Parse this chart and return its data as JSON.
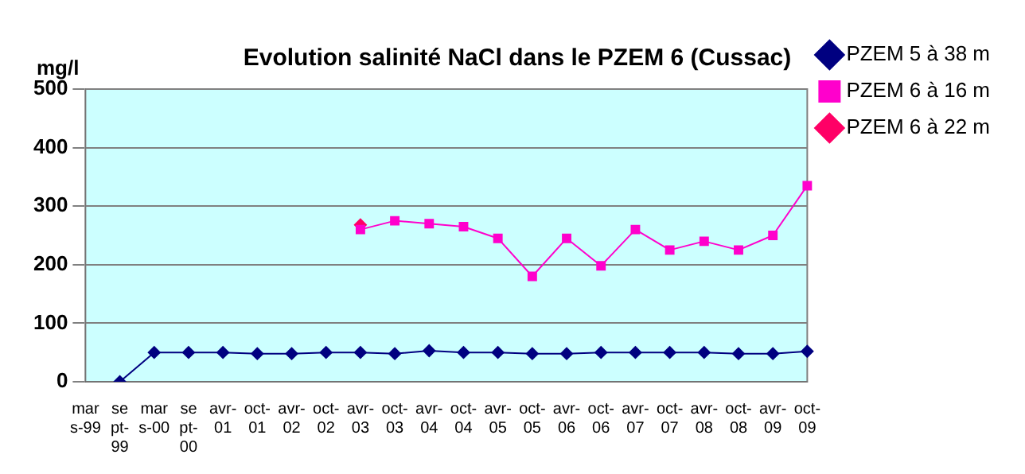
{
  "chart_data": {
    "type": "line",
    "title": "Evolution salinité NaCl dans le PZEM 6 (Cussac)",
    "ylabel": "mg/l",
    "categories": [
      "mar s-99",
      "se pt- 99",
      "mar s-00",
      "se pt- 00",
      "avr- 01",
      "oct- 01",
      "avr- 02",
      "oct- 02",
      "avr- 03",
      "oct- 03",
      "avr- 04",
      "oct- 04",
      "avr- 05",
      "oct- 05",
      "avr- 06",
      "oct- 06",
      "avr- 07",
      "oct- 07",
      "avr- 08",
      "oct- 08",
      "avr- 09",
      "oct- 09"
    ],
    "series": [
      {
        "name": "PZEM 5 à 38 m",
        "color": "#000080",
        "marker": "diamond",
        "values": [
          null,
          0,
          50,
          50,
          50,
          48,
          48,
          50,
          50,
          48,
          53,
          50,
          50,
          48,
          48,
          50,
          50,
          50,
          50,
          48,
          48,
          52
        ]
      },
      {
        "name": "PZEM 6 à 16 m",
        "color": "#ff00cc",
        "marker": "square",
        "values": [
          null,
          null,
          null,
          null,
          null,
          null,
          null,
          null,
          260,
          275,
          270,
          265,
          245,
          180,
          245,
          198,
          260,
          225,
          240,
          225,
          250,
          335
        ]
      },
      {
        "name": "PZEM 6 à 22 m",
        "color": "#ff0066",
        "marker": "diamond",
        "values": [
          null,
          null,
          null,
          null,
          null,
          null,
          null,
          null,
          268,
          null,
          null,
          null,
          null,
          null,
          null,
          null,
          null,
          null,
          null,
          null,
          null,
          null
        ]
      }
    ],
    "ylim": [
      0,
      500
    ],
    "yticks": [
      0,
      100,
      200,
      300,
      400,
      500
    ],
    "grid": "y",
    "legend": "top right"
  }
}
